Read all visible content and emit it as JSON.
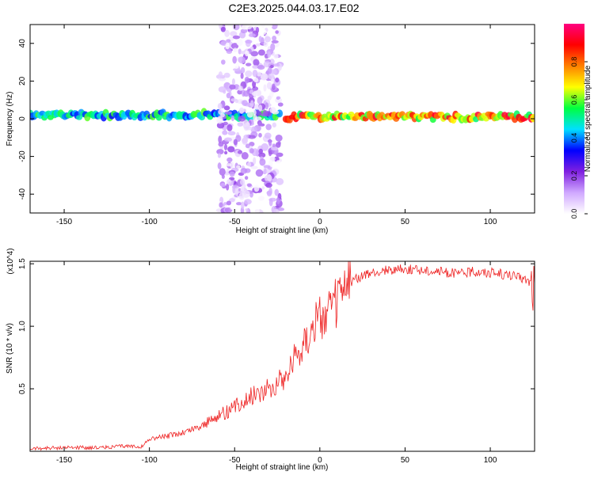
{
  "title": "C2E3.2025.044.03.17.E02",
  "chart_data": [
    {
      "type": "heatmap",
      "xlabel": "Height of straight line (km)",
      "ylabel": "Frequency (Hz)",
      "xlim": [
        -170,
        126
      ],
      "ylim": [
        -50,
        50
      ],
      "xticks": [
        -150,
        -100,
        -50,
        0,
        50,
        100
      ],
      "yticks": [
        -40,
        -20,
        0,
        20,
        40
      ],
      "colorbar": {
        "label": "Normalized spectral amplitude",
        "range": [
          0,
          1
        ],
        "ticks": [
          "0.0",
          "0.2",
          "0.4",
          "0.6",
          "0.8"
        ],
        "colors": [
          "#ffffff",
          "#d0a8ff",
          "#8020e0",
          "#0000ff",
          "#00e0ff",
          "#00ff40",
          "#ffff00",
          "#ff8000",
          "#ff0000",
          "#ff0080"
        ]
      },
      "features": [
        {
          "x_range": [
            -170,
            -23
          ],
          "freq_hz": 2,
          "max_amplitude": 0.6
        },
        {
          "x_range": [
            -20,
            126
          ],
          "freq_hz": 1,
          "max_amplitude": 0.95
        },
        {
          "x_range": [
            -59,
            -23
          ],
          "freq_hz_range": [
            -50,
            50
          ],
          "max_amplitude": 0.2
        }
      ]
    },
    {
      "type": "line",
      "xlabel": "Height of straight line (km)",
      "ylabel": "SNR (10 * v/v)",
      "multiplier": "(x10^4)",
      "xlim": [
        -170,
        126
      ],
      "ylim": [
        0,
        1.52
      ],
      "xticks": [
        -150,
        -100,
        -50,
        0,
        50,
        100
      ],
      "yticks": [
        0.5,
        1.0,
        1.5
      ],
      "series": [
        {
          "color": "#ee2222",
          "x": [
            -170,
            -150,
            -130,
            -115,
            -104,
            -100,
            -90,
            -80,
            -70,
            -60,
            -50,
            -40,
            -30,
            -20,
            -15,
            -10,
            -5,
            0,
            5,
            10,
            15,
            20,
            30,
            40,
            50,
            60,
            70,
            80,
            90,
            100,
            110,
            120,
            126
          ],
          "y": [
            0.02,
            0.03,
            0.03,
            0.04,
            0.04,
            0.1,
            0.12,
            0.15,
            0.2,
            0.28,
            0.35,
            0.45,
            0.5,
            0.6,
            0.75,
            0.85,
            1.0,
            1.05,
            1.1,
            1.2,
            1.3,
            1.38,
            1.42,
            1.45,
            1.46,
            1.45,
            1.44,
            1.42,
            1.44,
            1.43,
            1.41,
            1.38,
            1.33
          ]
        }
      ]
    }
  ]
}
